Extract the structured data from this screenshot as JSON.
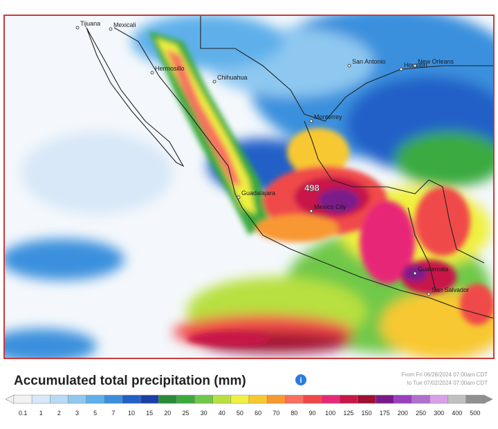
{
  "title": "Accumulated total precipitation (mm)",
  "date_range": [
    "From Fri 06/28/2024 07:00am CDT",
    "to Tue 07/02/2024 07:00am CDT"
  ],
  "peak_label": "498",
  "cities": [
    "Tijuana",
    "Mexicali",
    "Hermosillo",
    "Chihuahua",
    "Monterrey",
    "San Antonio",
    "Houston",
    "New Orleans",
    "Guadalajara",
    "Mexico City",
    "Guatemala",
    "San Salvador"
  ],
  "legend": {
    "ticks": [
      0.1,
      1,
      2,
      3,
      5,
      7,
      10,
      15,
      20,
      25,
      30,
      40,
      50,
      60,
      70,
      80,
      90,
      100,
      125,
      150,
      175,
      200,
      250,
      300,
      400,
      500
    ],
    "colors": [
      "#f2f2f2",
      "#d8e8f8",
      "#b8daf5",
      "#8ec8f0",
      "#5fb0ea",
      "#3a90dd",
      "#2060c8",
      "#1a40a8",
      "#2a8a3a",
      "#3aaa40",
      "#70c848",
      "#b8e040",
      "#f0f040",
      "#f8c830",
      "#f89830",
      "#f87060",
      "#f04848",
      "#e82878",
      "#c81848",
      "#a01030",
      "#7a1a8a",
      "#9a40c0",
      "#b070d0",
      "#d8a0e8",
      "#c0c0c0",
      "#909090"
    ]
  }
}
